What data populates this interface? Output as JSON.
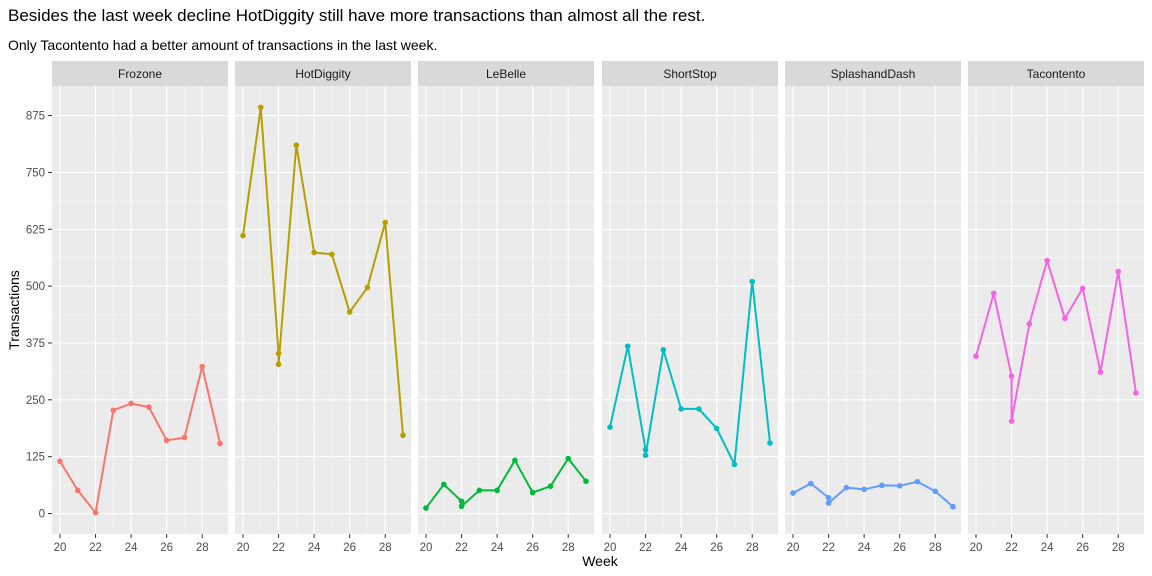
{
  "chart_data": {
    "type": "line",
    "title": "Besides the last week decline HotDiggity still have more transactions than almost all the rest.",
    "subtitle": "Only Tacontento had a better amount of transactions in the last week.",
    "xlabel": "Week",
    "ylabel": "Transactions",
    "x_ticks": [
      20,
      22,
      24,
      26,
      28
    ],
    "y_ticks": [
      0,
      125,
      250,
      375,
      500,
      625,
      750,
      875
    ],
    "xlim": [
      19.55,
      29.45
    ],
    "ylim": [
      -45,
      940
    ],
    "grid": true,
    "panels": [
      {
        "name": "Frozone",
        "color": "#F8766D",
        "points": [
          [
            20,
            115
          ],
          [
            21,
            51
          ],
          [
            22,
            2
          ],
          [
            23,
            227
          ],
          [
            24,
            242
          ],
          [
            25,
            234
          ],
          [
            26,
            161
          ],
          [
            27,
            167
          ],
          [
            28,
            323
          ],
          [
            29,
            154
          ]
        ]
      },
      {
        "name": "HotDiggity",
        "color": "#B79F00",
        "points": [
          [
            20,
            611
          ],
          [
            21,
            893
          ],
          [
            22,
            352
          ],
          [
            22,
            328
          ],
          [
            23,
            810
          ],
          [
            24,
            574
          ],
          [
            25,
            570
          ],
          [
            26,
            443
          ],
          [
            27,
            497
          ],
          [
            28,
            640
          ],
          [
            29,
            172
          ]
        ]
      },
      {
        "name": "LeBelle",
        "color": "#00BA38",
        "points": [
          [
            20,
            12
          ],
          [
            21,
            64
          ],
          [
            22,
            27
          ],
          [
            22,
            16
          ],
          [
            23,
            51
          ],
          [
            24,
            51
          ],
          [
            25,
            117
          ],
          [
            26,
            46
          ],
          [
            27,
            60
          ],
          [
            28,
            121
          ],
          [
            29,
            71
          ]
        ]
      },
      {
        "name": "ShortStop",
        "color": "#00BFC4",
        "points": [
          [
            20,
            190
          ],
          [
            21,
            368
          ],
          [
            22,
            140
          ],
          [
            22,
            128
          ],
          [
            23,
            360
          ],
          [
            24,
            230
          ],
          [
            25,
            230
          ],
          [
            26,
            187
          ],
          [
            27,
            108
          ],
          [
            28,
            510
          ],
          [
            29,
            155
          ]
        ]
      },
      {
        "name": "SplashandDash",
        "color": "#619CFF",
        "points": [
          [
            20,
            45
          ],
          [
            21,
            66
          ],
          [
            22,
            35
          ],
          [
            22,
            23
          ],
          [
            23,
            57
          ],
          [
            24,
            53
          ],
          [
            25,
            62
          ],
          [
            26,
            61
          ],
          [
            27,
            70
          ],
          [
            28,
            49
          ],
          [
            29,
            15
          ]
        ]
      },
      {
        "name": "Tacontento",
        "color": "#F564E3",
        "points": [
          [
            20,
            346
          ],
          [
            21,
            484
          ],
          [
            22,
            302
          ],
          [
            22,
            203
          ],
          [
            23,
            417
          ],
          [
            24,
            556
          ],
          [
            25,
            429
          ],
          [
            26,
            495
          ],
          [
            27,
            311
          ],
          [
            28,
            532
          ],
          [
            29,
            265
          ]
        ]
      }
    ]
  }
}
